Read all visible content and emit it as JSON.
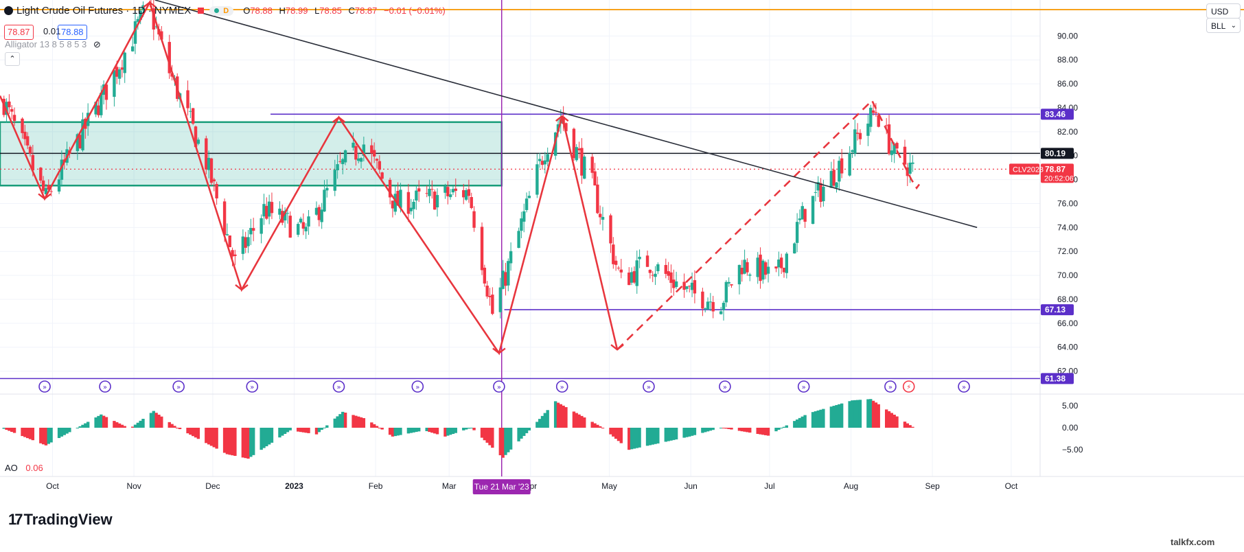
{
  "header": {
    "symbol_title": "Light Crude Oil Futures · 1D · NYMEX",
    "ohlc": [
      {
        "k": "O",
        "v": "78.88"
      },
      {
        "k": "H",
        "v": "78.99"
      },
      {
        "k": "L",
        "v": "78.85"
      },
      {
        "k": "C",
        "v": "78.87"
      }
    ],
    "change": "−0.01 (−0.01%)",
    "badge": "D",
    "bid": "78.87",
    "spread": "0.01",
    "ask": "78.88",
    "indicator": "Alligator 13 8 5 8 5 3"
  },
  "currency_button": "USD",
  "unit_button": "BLL",
  "ao": {
    "label": "AO",
    "value": "0.06"
  },
  "brand": "TradingView",
  "watermark": "talkfx.com",
  "colors": {
    "up": "#22ab94",
    "down": "#f23645",
    "pattern": "#e8363e",
    "level": "#5b2fc9",
    "cursor": "#9c27b0",
    "hline": "#f7a21b"
  },
  "chart_data": {
    "type": "candlestick",
    "title": "Light Crude Oil Futures · 1D · NYMEX",
    "y_range": [
      61.0,
      93.0
    ],
    "y_ticks": [
      "90.00",
      "88.00",
      "86.00",
      "84.00",
      "82.00",
      "80.00",
      "78.00",
      "76.00",
      "74.00",
      "72.00",
      "70.00",
      "68.00",
      "66.00",
      "64.00",
      "62.00"
    ],
    "x_ticks": [
      {
        "date": "2022-10-01",
        "label": "Oct"
      },
      {
        "date": "2022-11-01",
        "label": "Nov"
      },
      {
        "date": "2022-12-01",
        "label": "Dec"
      },
      {
        "date": "2023-01-01",
        "label": "2023"
      },
      {
        "date": "2023-02-01",
        "label": "Feb"
      },
      {
        "date": "2023-03-01",
        "label": "Mar"
      },
      {
        "date": "2023-04-01",
        "label": "Apr"
      },
      {
        "date": "2023-05-01",
        "label": "May"
      },
      {
        "date": "2023-06-01",
        "label": "Jun"
      },
      {
        "date": "2023-07-01",
        "label": "Jul"
      },
      {
        "date": "2023-08-01",
        "label": "Aug"
      },
      {
        "date": "2023-09-01",
        "label": "Sep"
      },
      {
        "date": "2023-10-01",
        "label": "Oct"
      }
    ],
    "x_start": "2022-09-11",
    "x_end": "2023-10-12",
    "path_points": [
      {
        "date": "2022-09-11",
        "price": 85.0
      },
      {
        "date": "2022-09-28",
        "price": 76.4
      },
      {
        "date": "2022-10-21",
        "price": 85.5
      },
      {
        "date": "2022-11-06",
        "price": 92.6
      },
      {
        "date": "2022-11-14",
        "price": 87.0
      },
      {
        "date": "2022-11-28",
        "price": 79.5
      },
      {
        "date": "2022-12-09",
        "price": 71.0
      },
      {
        "date": "2022-12-20",
        "price": 75.5
      },
      {
        "date": "2023-01-05",
        "price": 73.5
      },
      {
        "date": "2023-01-18",
        "price": 79.0
      },
      {
        "date": "2023-01-27",
        "price": 81.0
      },
      {
        "date": "2023-02-08",
        "price": 76.0
      },
      {
        "date": "2023-02-23",
        "price": 76.5
      },
      {
        "date": "2023-03-08",
        "price": 77.0
      },
      {
        "date": "2023-03-17",
        "price": 66.8
      },
      {
        "date": "2023-03-22",
        "price": 70.0
      },
      {
        "date": "2023-04-06",
        "price": 80.6
      },
      {
        "date": "2023-04-12",
        "price": 83.2
      },
      {
        "date": "2023-04-24",
        "price": 77.5
      },
      {
        "date": "2023-05-05",
        "price": 69.5
      },
      {
        "date": "2023-05-15",
        "price": 71.2
      },
      {
        "date": "2023-05-31",
        "price": 68.5
      },
      {
        "date": "2023-06-12",
        "price": 67.8
      },
      {
        "date": "2023-06-20",
        "price": 71.0
      },
      {
        "date": "2023-07-03",
        "price": 69.8
      },
      {
        "date": "2023-07-14",
        "price": 75.4
      },
      {
        "date": "2023-07-25",
        "price": 78.5
      },
      {
        "date": "2023-08-03",
        "price": 81.6
      },
      {
        "date": "2023-08-10",
        "price": 83.8
      },
      {
        "date": "2023-08-17",
        "price": 80.0
      },
      {
        "date": "2023-08-24",
        "price": 78.9
      }
    ],
    "zigzag": [
      {
        "date": "2022-09-11",
        "price": 85.0
      },
      {
        "date": "2022-09-28",
        "price": 76.4
      },
      {
        "date": "2022-11-07",
        "price": 92.8
      },
      {
        "date": "2022-12-12",
        "price": 68.8
      },
      {
        "date": "2023-01-18",
        "price": 83.2
      },
      {
        "date": "2023-03-20",
        "price": 63.5
      },
      {
        "date": "2023-04-13",
        "price": 83.3
      },
      {
        "date": "2023-05-04",
        "price": 63.8
      }
    ],
    "zigzag_dashed": [
      {
        "date": "2023-05-04",
        "price": 63.8
      },
      {
        "date": "2023-08-09",
        "price": 84.6
      },
      {
        "date": "2023-08-24",
        "price": 78.0
      },
      {
        "date": "2023-08-26",
        "price": 77.3
      },
      {
        "date": "2023-08-27",
        "price": 77.6
      }
    ],
    "trendline": {
      "from": {
        "date": "2022-11-09",
        "price": 93.0
      },
      "to": {
        "date": "2023-09-18",
        "price": 74.0
      }
    },
    "box": {
      "from_date": "2022-09-11",
      "to_date": "2023-03-21",
      "top": 82.8,
      "bottom": 77.5
    },
    "horizontal_lines": [
      {
        "price": 92.2,
        "style": "orange",
        "label": ""
      },
      {
        "price": 83.46,
        "style": "level",
        "from_date": "2022-12-23",
        "label": "83.46"
      },
      {
        "price": 80.19,
        "style": "black",
        "label": "80.19"
      },
      {
        "price": 78.87,
        "style": "dotted",
        "label": "78.87"
      },
      {
        "price": 67.13,
        "style": "level",
        "from_date": "2023-03-22",
        "label": "67.13"
      },
      {
        "price": 61.38,
        "style": "level",
        "label": "61.38"
      }
    ],
    "current_price": {
      "price": 78.87,
      "symbol": "CLV2023",
      "countdown": "20:52:06"
    },
    "crosshair": {
      "date": "2023-03-21",
      "label": "Tue 21 Mar '23"
    },
    "events": [
      "2022-09-28",
      "2022-10-21",
      "2022-11-18",
      "2022-12-16",
      "2023-01-18",
      "2023-02-17",
      "2023-03-20",
      "2023-04-13",
      "2023-05-16",
      "2023-06-14",
      "2023-07-14",
      "2023-08-16",
      "2023-08-23",
      "2023-09-13"
    ],
    "ao_ticks": [
      "5.00",
      "0.00",
      "−5.00"
    ],
    "ao_range": [
      -7.0,
      7.0
    ],
    "ao_points": [
      {
        "date": "2022-09-11",
        "value": 0.0
      },
      {
        "date": "2022-09-28",
        "value": -4.0
      },
      {
        "date": "2022-10-10",
        "value": 0.0
      },
      {
        "date": "2022-10-19",
        "value": 3.0
      },
      {
        "date": "2022-10-30",
        "value": -0.2
      },
      {
        "date": "2022-11-08",
        "value": 3.8
      },
      {
        "date": "2022-11-17",
        "value": 0.0
      },
      {
        "date": "2022-12-06",
        "value": -6.0
      },
      {
        "date": "2022-12-14",
        "value": -7.0
      },
      {
        "date": "2022-12-30",
        "value": -0.6
      },
      {
        "date": "2023-01-09",
        "value": -1.5
      },
      {
        "date": "2023-01-19",
        "value": 3.6
      },
      {
        "date": "2023-01-28",
        "value": 2.0
      },
      {
        "date": "2023-02-07",
        "value": -2.0
      },
      {
        "date": "2023-02-19",
        "value": -0.6
      },
      {
        "date": "2023-02-27",
        "value": -2.0
      },
      {
        "date": "2023-03-09",
        "value": 0.0
      },
      {
        "date": "2023-03-21",
        "value": -6.8
      },
      {
        "date": "2023-04-01",
        "value": 0.0
      },
      {
        "date": "2023-04-10",
        "value": 6.0
      },
      {
        "date": "2023-04-28",
        "value": 0.0
      },
      {
        "date": "2023-05-08",
        "value": -5.0
      },
      {
        "date": "2023-05-31",
        "value": -2.0
      },
      {
        "date": "2023-06-12",
        "value": 0.0
      },
      {
        "date": "2023-06-30",
        "value": -1.8
      },
      {
        "date": "2023-07-15",
        "value": 3.2
      },
      {
        "date": "2023-08-01",
        "value": 6.2
      },
      {
        "date": "2023-08-08",
        "value": 6.5
      },
      {
        "date": "2023-08-24",
        "value": 0.2
      }
    ]
  }
}
